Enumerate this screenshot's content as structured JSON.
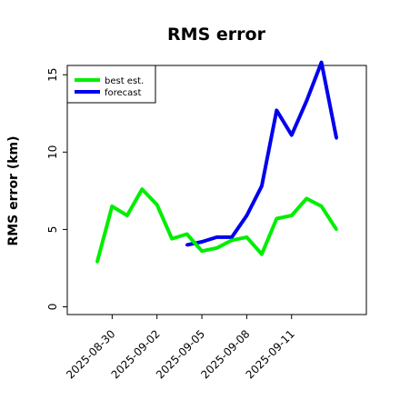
{
  "chart_data": {
    "type": "line",
    "title": "RMS error",
    "xlabel": "",
    "ylabel": "RMS error (km)",
    "x": [
      "2025-08-29",
      "2025-08-30",
      "2025-08-31",
      "2025-09-01",
      "2025-09-02",
      "2025-09-03",
      "2025-09-04",
      "2025-09-05",
      "2025-09-06",
      "2025-09-07",
      "2025-09-08",
      "2025-09-09",
      "2025-09-10",
      "2025-09-11",
      "2025-09-12",
      "2025-09-13",
      "2025-09-14",
      "2025-09-15"
    ],
    "xticks": [
      "2025-08-30",
      "2025-09-02",
      "2025-09-05",
      "2025-09-08",
      "2025-09-11"
    ],
    "xlim": [
      "2025-08-27",
      "2025-09-16"
    ],
    "ylim": [
      -0.5,
      15.6
    ],
    "yticks": [
      0,
      5,
      10,
      15
    ],
    "grid": false,
    "legend_position": "top-left",
    "series": [
      {
        "name": "best est.",
        "color": "#00ee00",
        "values": [
          2.9,
          6.5,
          5.9,
          7.6,
          6.6,
          4.4,
          4.7,
          3.6,
          3.8,
          4.3,
          4.5,
          3.4,
          5.7,
          5.9,
          7.0,
          6.5,
          5.0,
          null
        ]
      },
      {
        "name": "forecast",
        "color": "#0000ee",
        "values": [
          null,
          null,
          null,
          null,
          null,
          null,
          4.0,
          4.2,
          4.5,
          4.5,
          5.9,
          7.8,
          12.7,
          11.1,
          13.3,
          15.8,
          10.9,
          null
        ]
      }
    ]
  }
}
